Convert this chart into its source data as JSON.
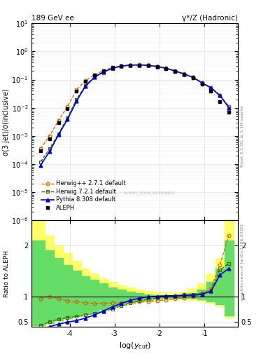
{
  "title_left": "189 GeV ee",
  "title_right": "γ*/Z (Hadronic)",
  "ylabel_main": "σ(3 jet)/σ(inclusive)",
  "ylabel_ratio": "Ratio to ALEPH",
  "xlabel": "log(y_{cut})",
  "right_label_main": "Rivet 3.1.10; ≥ 3.1M events",
  "right_label_ratio": "mcplots.cern.ch [arXiv:1306.3436]",
  "watermark": "ALEPH_2004_S5765862",
  "legend_entries": [
    "ALEPH",
    "Herwig++ 2.7.1 default",
    "Herwig 7.2.1 default",
    "Pythia 8.308 default"
  ],
  "xlim": [
    -4.85,
    -0.25
  ],
  "ylim_main": [
    1e-06,
    10
  ],
  "ylim_ratio": [
    0.4,
    2.5
  ],
  "x_ticks": [
    -4,
    -3,
    -2,
    -1
  ],
  "aleph_x": [
    -4.65,
    -4.45,
    -4.25,
    -4.05,
    -3.85,
    -3.65,
    -3.45,
    -3.25,
    -3.05,
    -2.85,
    -2.65,
    -2.45,
    -2.25,
    -2.05,
    -1.85,
    -1.65,
    -1.45,
    -1.25,
    -1.05,
    -0.85,
    -0.65,
    -0.45
  ],
  "aleph_y": [
    0.0003,
    0.0008,
    0.003,
    0.009,
    0.038,
    0.088,
    0.148,
    0.208,
    0.268,
    0.308,
    0.328,
    0.328,
    0.318,
    0.288,
    0.248,
    0.198,
    0.158,
    0.118,
    0.068,
    0.038,
    0.016,
    0.007
  ],
  "herwig_pp_x": [
    -4.65,
    -4.45,
    -4.25,
    -4.05,
    -3.85,
    -3.65,
    -3.45,
    -3.25,
    -3.05,
    -2.85,
    -2.65,
    -2.45,
    -2.25,
    -2.05,
    -1.85,
    -1.65,
    -1.45,
    -1.25,
    -1.05,
    -0.85,
    -0.65,
    -0.45
  ],
  "herwig_pp_y": [
    0.00035,
    0.001,
    0.0035,
    0.011,
    0.043,
    0.09,
    0.148,
    0.208,
    0.265,
    0.308,
    0.328,
    0.335,
    0.325,
    0.296,
    0.255,
    0.205,
    0.16,
    0.122,
    0.078,
    0.052,
    0.028,
    0.011
  ],
  "herwig_x": [
    -4.65,
    -4.45,
    -4.25,
    -4.05,
    -3.85,
    -3.65,
    -3.45,
    -3.25,
    -3.05,
    -2.85,
    -2.65,
    -2.45,
    -2.25,
    -2.05,
    -1.85,
    -1.65,
    -1.45,
    -1.25,
    -1.05,
    -0.85,
    -0.65,
    -0.45
  ],
  "herwig_y": [
    0.00012,
    0.00035,
    0.0012,
    0.0045,
    0.02,
    0.062,
    0.125,
    0.19,
    0.25,
    0.298,
    0.322,
    0.328,
    0.318,
    0.29,
    0.25,
    0.202,
    0.158,
    0.12,
    0.077,
    0.052,
    0.028,
    0.011
  ],
  "pythia_x": [
    -4.65,
    -4.45,
    -4.25,
    -4.05,
    -3.85,
    -3.65,
    -3.45,
    -3.25,
    -3.05,
    -2.85,
    -2.65,
    -2.45,
    -2.25,
    -2.05,
    -1.85,
    -1.65,
    -1.45,
    -1.25,
    -1.05,
    -0.85,
    -0.65,
    -0.45
  ],
  "pythia_y": [
    9e-05,
    0.00028,
    0.0011,
    0.0038,
    0.017,
    0.058,
    0.12,
    0.186,
    0.252,
    0.302,
    0.328,
    0.333,
    0.322,
    0.293,
    0.252,
    0.203,
    0.158,
    0.119,
    0.076,
    0.051,
    0.027,
    0.01
  ],
  "ratio_herwig_pp": [
    0.95,
    1.0,
    0.95,
    0.91,
    0.89,
    0.87,
    0.86,
    0.86,
    0.87,
    0.87,
    0.88,
    0.89,
    0.9,
    0.91,
    0.93,
    0.95,
    0.97,
    1.0,
    1.04,
    1.15,
    1.62,
    2.2
  ],
  "ratio_herwig": [
    0.42,
    0.5,
    0.55,
    0.58,
    0.6,
    0.63,
    0.66,
    0.7,
    0.75,
    0.81,
    0.87,
    0.91,
    0.94,
    0.97,
    0.99,
    1.01,
    1.03,
    1.04,
    1.06,
    1.1,
    1.52,
    1.65
  ],
  "ratio_pythia": [
    0.3,
    0.4,
    0.45,
    0.49,
    0.52,
    0.57,
    0.63,
    0.71,
    0.79,
    0.86,
    0.92,
    0.96,
    0.99,
    1.0,
    1.01,
    1.01,
    1.02,
    1.02,
    1.04,
    1.1,
    1.42,
    1.55
  ],
  "color_aleph": "#000000",
  "color_herwig_pp": "#cc6600",
  "color_herwig": "#336600",
  "color_pythia": "#0000cc",
  "band_x_edges": [
    -4.85,
    -4.75,
    -4.55,
    -4.35,
    -4.15,
    -3.95,
    -3.75,
    -3.55,
    -3.35,
    -3.15,
    -2.95,
    -2.75,
    -2.55,
    -2.35,
    -2.15,
    -1.95,
    -1.75,
    -1.55,
    -1.35,
    -1.15,
    -0.95,
    -0.75,
    -0.55,
    -0.35
  ],
  "yellow_lo": [
    0.42,
    0.42,
    0.45,
    0.5,
    0.55,
    0.6,
    0.65,
    0.7,
    0.75,
    0.8,
    0.83,
    0.86,
    0.88,
    0.9,
    0.92,
    0.93,
    0.94,
    0.94,
    0.93,
    0.91,
    0.87,
    0.82,
    0.58,
    0.58
  ],
  "yellow_hi": [
    2.5,
    2.5,
    2.2,
    2.0,
    1.85,
    1.7,
    1.55,
    1.45,
    1.35,
    1.28,
    1.22,
    1.17,
    1.13,
    1.1,
    1.08,
    1.07,
    1.07,
    1.09,
    1.15,
    1.25,
    1.45,
    1.75,
    2.5,
    2.5
  ],
  "green_lo": [
    0.42,
    0.42,
    0.47,
    0.53,
    0.57,
    0.61,
    0.65,
    0.69,
    0.74,
    0.79,
    0.83,
    0.87,
    0.9,
    0.93,
    0.95,
    0.96,
    0.97,
    0.97,
    0.96,
    0.94,
    0.9,
    0.84,
    0.62,
    0.62
  ],
  "green_hi": [
    2.1,
    2.1,
    1.9,
    1.75,
    1.62,
    1.5,
    1.4,
    1.32,
    1.25,
    1.18,
    1.13,
    1.09,
    1.06,
    1.04,
    1.02,
    1.01,
    1.01,
    1.02,
    1.06,
    1.13,
    1.28,
    1.55,
    2.1,
    2.1
  ]
}
